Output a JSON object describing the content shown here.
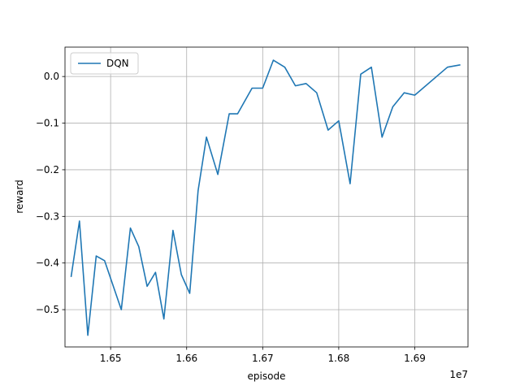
{
  "chart_data": {
    "type": "line",
    "title": "",
    "xlabel": "episode",
    "ylabel": "reward",
    "x_offset_label": "1e7",
    "xlim": [
      16440000,
      16970000
    ],
    "ylim": [
      -0.58,
      0.063
    ],
    "x_ticks": [
      16500000,
      16600000,
      16700000,
      16800000,
      16900000
    ],
    "x_tick_labels": [
      "1.65",
      "1.66",
      "1.67",
      "1.68",
      "1.69"
    ],
    "y_ticks": [
      0.0,
      -0.1,
      -0.2,
      -0.3,
      -0.4,
      -0.5
    ],
    "y_tick_labels": [
      "0.0",
      "−0.1",
      "−0.2",
      "−0.3",
      "−0.4",
      "−0.5"
    ],
    "grid": true,
    "legend_position": "upper-left",
    "series": [
      {
        "name": "DQN",
        "color": "#1f77b4",
        "x": [
          16448000,
          16459000,
          16470000,
          16481000,
          16492000,
          16514000,
          16526000,
          16537000,
          16548000,
          16559000,
          16570000,
          16582000,
          16593000,
          16604000,
          16615000,
          16626000,
          16641000,
          16656000,
          16667000,
          16686000,
          16700000,
          16714000,
          16729000,
          16743000,
          16757000,
          16771000,
          16786000,
          16800000,
          16815000,
          16829000,
          16843000,
          16857000,
          16871000,
          16886000,
          16900000,
          16943000,
          16960000
        ],
        "values": [
          -0.43,
          -0.31,
          -0.555,
          -0.385,
          -0.395,
          -0.5,
          -0.325,
          -0.365,
          -0.45,
          -0.42,
          -0.52,
          -0.33,
          -0.425,
          -0.465,
          -0.245,
          -0.13,
          -0.21,
          -0.08,
          -0.08,
          -0.025,
          -0.025,
          0.035,
          0.02,
          -0.02,
          -0.015,
          -0.035,
          -0.115,
          -0.095,
          -0.23,
          0.005,
          0.02,
          -0.13,
          -0.065,
          -0.035,
          -0.04,
          0.02,
          0.025
        ]
      }
    ]
  }
}
